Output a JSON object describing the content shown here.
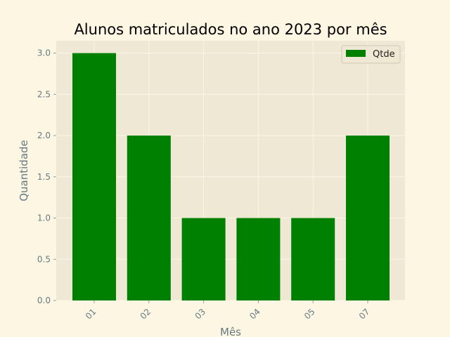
{
  "chart_data": {
    "type": "bar",
    "title": "Alunos matriculados no ano 2023 por mês",
    "xlabel": "Mês",
    "ylabel": "Quantidade",
    "categories": [
      "01",
      "02",
      "03",
      "04",
      "05",
      "07"
    ],
    "series": [
      {
        "name": "Qtde",
        "values": [
          3,
          2,
          1,
          1,
          1,
          2
        ]
      }
    ],
    "ylim": [
      0,
      3.15
    ],
    "yticks": [
      "0.0",
      "0.5",
      "1.0",
      "1.5",
      "2.0",
      "2.5",
      "3.0"
    ],
    "x_tick_rotation": 45,
    "grid": true,
    "legend_position": "top-right",
    "colors": {
      "bar": "#008000",
      "plot_bg": "#eee8d5",
      "figure_bg": "#fdf6e3",
      "grid": "#fdf6e3"
    }
  }
}
